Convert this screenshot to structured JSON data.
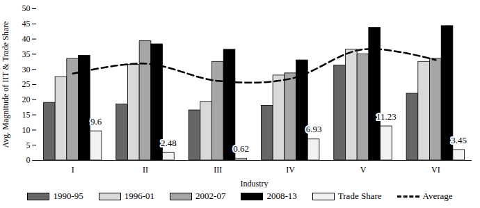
{
  "chart_data": {
    "type": "bar",
    "x_label": "Industry",
    "y_label": "Avg. Magnitude of IIT & Trade Share",
    "categories": [
      "I",
      "II",
      "III",
      "IV",
      "V",
      "VI"
    ],
    "series": [
      {
        "name": "1990-95",
        "color": "#666666",
        "values": [
          19,
          18.5,
          16.5,
          18,
          31.3,
          22
        ]
      },
      {
        "name": "1996-01",
        "color": "#d9d9d9",
        "values": [
          27.5,
          31.5,
          19.3,
          28,
          36.5,
          32.5
        ]
      },
      {
        "name": "2002-07",
        "color": "#a6a6a6",
        "values": [
          33.5,
          39.3,
          32.5,
          28.7,
          35,
          33.5
        ]
      },
      {
        "name": "2008-13",
        "color": "#000000",
        "values": [
          34.5,
          38.3,
          36.5,
          33,
          43.7,
          44.3
        ]
      },
      {
        "name": "Trade Share",
        "color": "#f2f2f2",
        "values": [
          9.6,
          2.48,
          0.62,
          6.93,
          11.23,
          3.45
        ],
        "data_labels": true
      },
      {
        "name": "Average",
        "type": "line",
        "line_style": "dashed",
        "color": "#000000",
        "values": [
          28.6,
          31.9,
          26.2,
          26.9,
          36.6,
          33.1
        ]
      }
    ],
    "ylim": [
      0,
      50
    ],
    "yticks": [
      0,
      5,
      10,
      15,
      20,
      25,
      30,
      35,
      40,
      45,
      50
    ],
    "legend": "bottom"
  }
}
